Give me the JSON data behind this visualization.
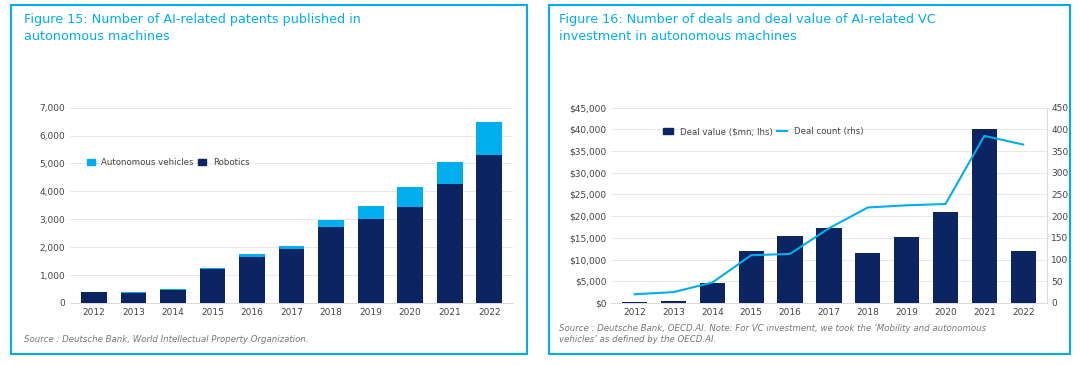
{
  "fig15": {
    "title_line1": "Figure 15: Number of AI-related patents published in",
    "title_line2": "autonomous machines",
    "years": [
      2012,
      2013,
      2014,
      2015,
      2016,
      2017,
      2018,
      2019,
      2020,
      2021,
      2022
    ],
    "robotics": [
      380,
      360,
      460,
      1200,
      1650,
      1950,
      2720,
      3020,
      3450,
      4280,
      5300
    ],
    "autonomous": [
      30,
      30,
      30,
      60,
      100,
      75,
      260,
      440,
      720,
      760,
      1200
    ],
    "ylim": [
      0,
      7000
    ],
    "yticks": [
      0,
      1000,
      2000,
      3000,
      4000,
      5000,
      6000,
      7000
    ],
    "bar_color_robotics": "#0c2461",
    "bar_color_autonomous": "#00aeef",
    "source": "Source : Deutsche Bank, World Intellectual Property Organization.",
    "legend_autonomous": "Autonomous vehicles",
    "legend_robotics": "Robotics",
    "title_color": "#00aeef",
    "source_color": "#777777",
    "border_color": "#00aeef"
  },
  "fig16": {
    "title_line1": "Figure 16: Number of deals and deal value of AI-related VC",
    "title_line2": "investment in autonomous machines",
    "years": [
      2012,
      2013,
      2014,
      2015,
      2016,
      2017,
      2018,
      2019,
      2020,
      2021,
      2022
    ],
    "deal_value": [
      150,
      350,
      4500,
      12000,
      15500,
      17200,
      11500,
      15200,
      21000,
      40000,
      12000
    ],
    "deal_count": [
      20,
      25,
      47,
      110,
      113,
      172,
      220,
      225,
      228,
      385,
      365
    ],
    "ylim_left": [
      0,
      45000
    ],
    "ylim_right": [
      0,
      450
    ],
    "yticks_left": [
      0,
      5000,
      10000,
      15000,
      20000,
      25000,
      30000,
      35000,
      40000,
      45000
    ],
    "yticks_right": [
      0,
      50,
      100,
      150,
      200,
      250,
      300,
      350,
      400,
      450
    ],
    "bar_color": "#0c2461",
    "line_color": "#00aeef",
    "source": "Source : Deutsche Bank, OECD.AI. Note: For VC investment, we took the ‘Mobility and autonomous\nvehicles’ as defined by the OECD.AI.",
    "legend_bar": "Deal value ($mn; lhs)",
    "legend_line": "Deal count (rhs)",
    "title_color": "#00aeef",
    "source_color": "#777777",
    "border_color": "#00aeef"
  },
  "bg_color": "#ffffff"
}
